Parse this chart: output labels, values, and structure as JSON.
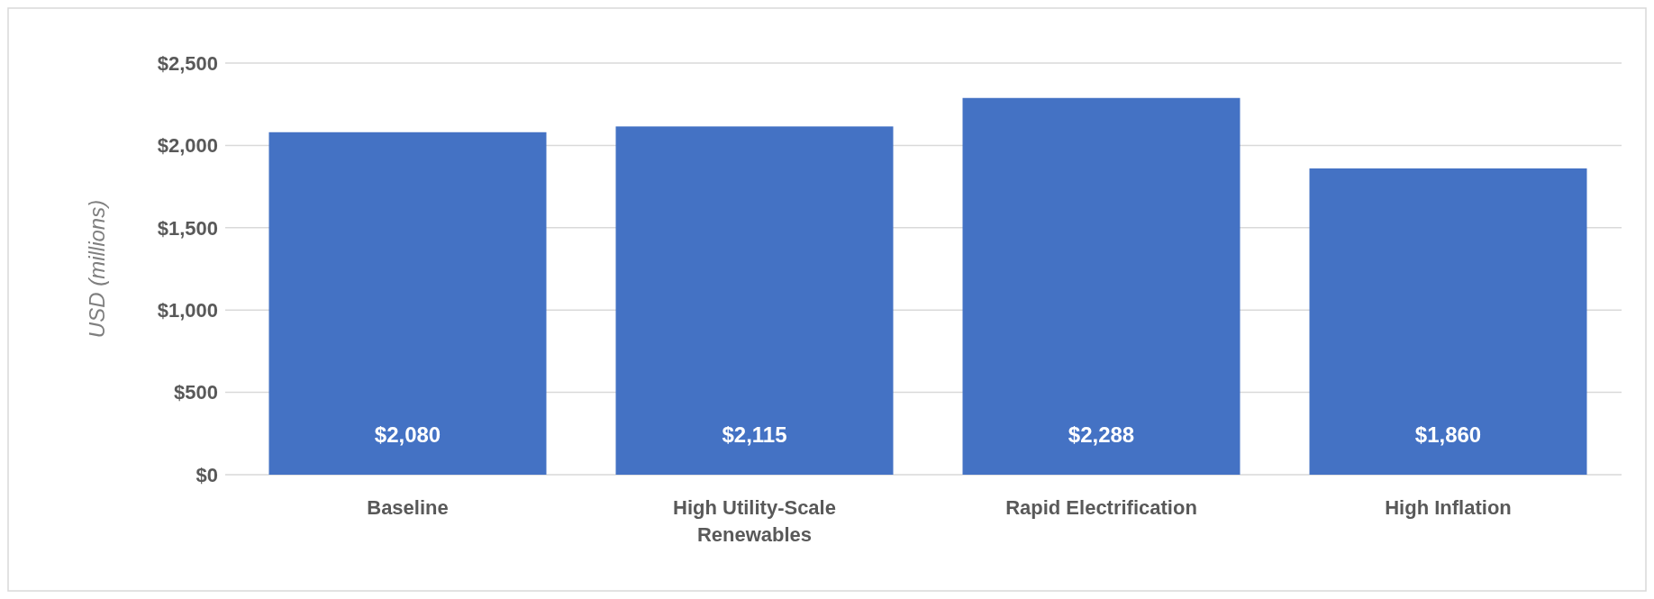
{
  "chart_data": {
    "type": "bar",
    "ylabel": "USD (millions)",
    "categories": [
      "Baseline",
      "High Utility-Scale Renewables",
      "Rapid Electrification",
      "High Inflation"
    ],
    "values": [
      2080,
      2115,
      2288,
      1860
    ],
    "color": "#4472c4",
    "value_labels": [
      "$2,080",
      "$2,115",
      "$2,288",
      "$1,860"
    ],
    "ylim": [
      0,
      2500
    ],
    "yticks": [
      {
        "value": 0,
        "label": "$0"
      },
      {
        "value": 500,
        "label": "$500"
      },
      {
        "value": 1000,
        "label": "$1,000"
      },
      {
        "value": 1500,
        "label": "$1,500"
      },
      {
        "value": 2000,
        "label": "$2,000"
      },
      {
        "value": 2500,
        "label": "$2,500"
      }
    ],
    "grid": "y"
  }
}
